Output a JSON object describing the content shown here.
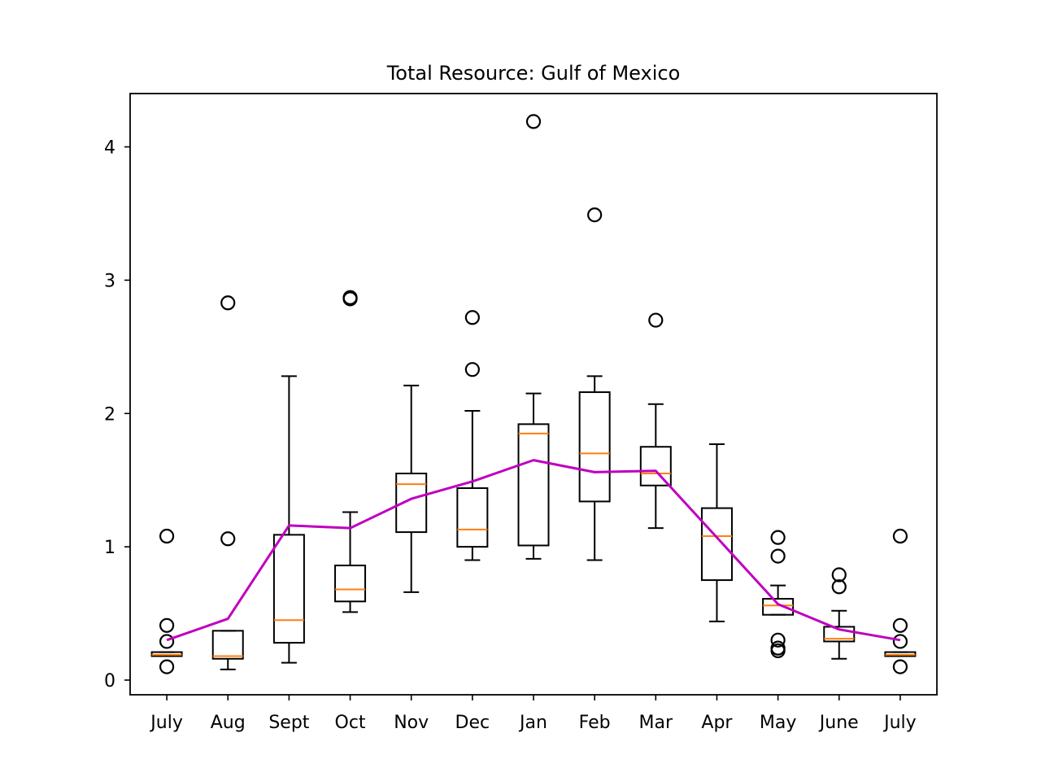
{
  "chart_data": {
    "type": "box",
    "title": "Total Resource: Gulf of Mexico",
    "xlabel": "",
    "ylabel": "",
    "ylim": [
      -0.11,
      4.4
    ],
    "yticks": [
      0,
      1,
      2,
      3,
      4
    ],
    "grid": false,
    "categories": [
      "July",
      "Aug",
      "Sept",
      "Oct",
      "Nov",
      "Dec",
      "Jan",
      "Feb",
      "Mar",
      "Apr",
      "May",
      "June",
      "July"
    ],
    "boxes": [
      {
        "whisker_low": 0.18,
        "q1": 0.18,
        "median": 0.19,
        "q3": 0.21,
        "whisker_high": 0.21,
        "outliers": [
          1.08,
          0.41,
          0.29,
          0.1
        ]
      },
      {
        "whisker_low": 0.08,
        "q1": 0.16,
        "median": 0.18,
        "q3": 0.37,
        "whisker_high": 0.37,
        "outliers": [
          2.83,
          1.06
        ]
      },
      {
        "whisker_low": 0.13,
        "q1": 0.28,
        "median": 0.45,
        "q3": 1.09,
        "whisker_high": 2.28,
        "outliers": []
      },
      {
        "whisker_low": 0.51,
        "q1": 0.59,
        "median": 0.68,
        "q3": 0.86,
        "whisker_high": 1.26,
        "outliers": [
          2.87,
          2.86
        ]
      },
      {
        "whisker_low": 0.66,
        "q1": 1.11,
        "median": 1.47,
        "q3": 1.55,
        "whisker_high": 2.21,
        "outliers": []
      },
      {
        "whisker_low": 0.9,
        "q1": 1.0,
        "median": 1.13,
        "q3": 1.44,
        "whisker_high": 2.02,
        "outliers": [
          2.72,
          2.33
        ]
      },
      {
        "whisker_low": 0.91,
        "q1": 1.01,
        "median": 1.85,
        "q3": 1.92,
        "whisker_high": 2.15,
        "outliers": [
          4.19
        ]
      },
      {
        "whisker_low": 0.9,
        "q1": 1.34,
        "median": 1.7,
        "q3": 2.16,
        "whisker_high": 2.28,
        "outliers": [
          3.49
        ]
      },
      {
        "whisker_low": 1.14,
        "q1": 1.46,
        "median": 1.55,
        "q3": 1.75,
        "whisker_high": 2.07,
        "outliers": [
          2.7
        ]
      },
      {
        "whisker_low": 0.44,
        "q1": 0.75,
        "median": 1.08,
        "q3": 1.29,
        "whisker_high": 1.77,
        "outliers": []
      },
      {
        "whisker_low": 0.49,
        "q1": 0.49,
        "median": 0.56,
        "q3": 0.61,
        "whisker_high": 0.71,
        "outliers": [
          1.07,
          0.93,
          0.3,
          0.24,
          0.22
        ]
      },
      {
        "whisker_low": 0.16,
        "q1": 0.29,
        "median": 0.31,
        "q3": 0.4,
        "whisker_high": 0.52,
        "outliers": [
          0.79,
          0.7
        ]
      },
      {
        "whisker_low": 0.18,
        "q1": 0.18,
        "median": 0.19,
        "q3": 0.21,
        "whisker_high": 0.21,
        "outliers": [
          1.08,
          0.41,
          0.29,
          0.1
        ]
      }
    ],
    "mean_line": {
      "values": [
        0.3,
        0.46,
        1.16,
        1.14,
        1.36,
        1.49,
        1.65,
        1.56,
        1.57,
        1.07,
        0.57,
        0.38,
        0.3
      ],
      "color": "#bf00bf"
    },
    "colors": {
      "median": "#ff7f0e",
      "box": "#000000",
      "mean_line": "#bf00bf"
    }
  }
}
